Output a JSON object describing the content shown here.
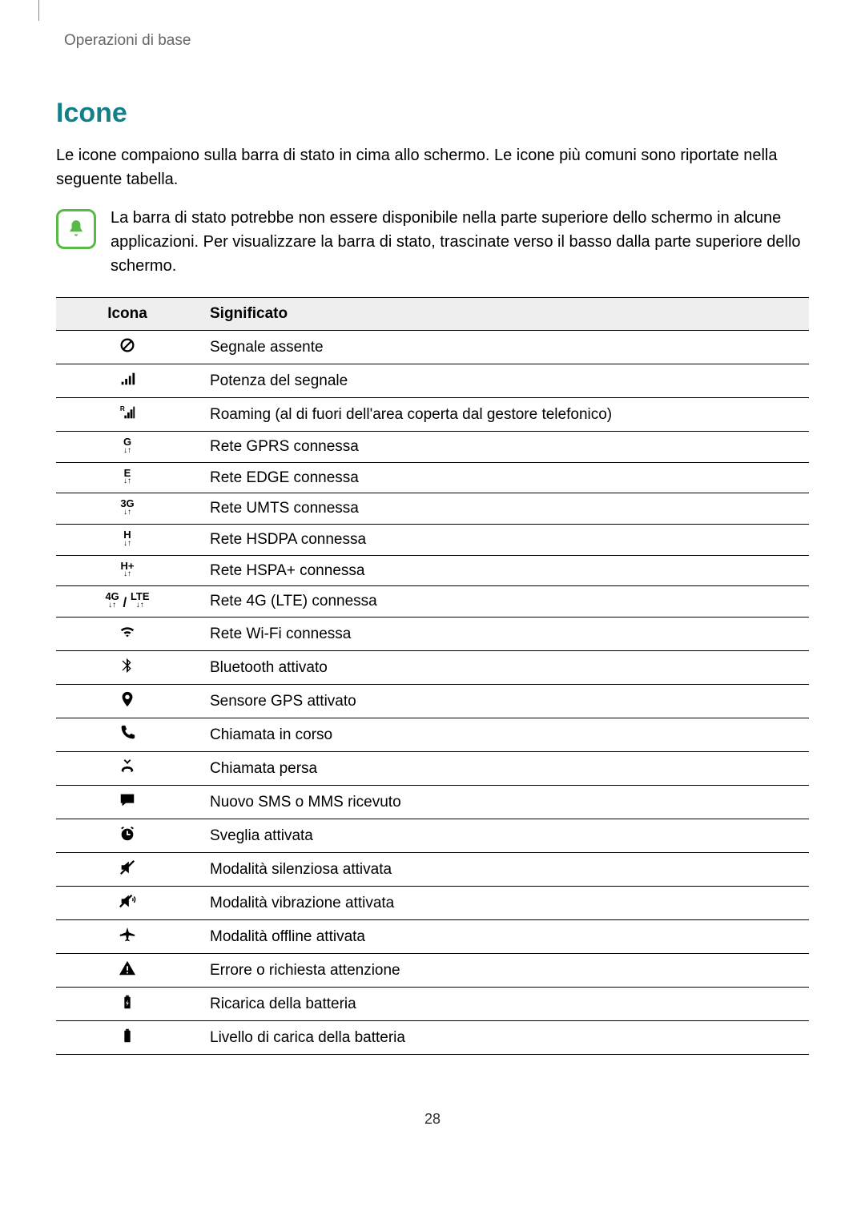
{
  "breadcrumb": "Operazioni di base",
  "title": "Icone",
  "intro": "Le icone compaiono sulla barra di stato in cima allo schermo. Le icone più comuni sono riportate nella seguente tabella.",
  "note": "La barra di stato potrebbe non essere disponibile nella parte superiore dello schermo in alcune applicazioni. Per visualizzare la barra di stato, trascinate verso il basso dalla parte superiore dello schermo.",
  "page_num": "28",
  "colors": {
    "heading": "#127f89",
    "note_border": "#58b947",
    "header_bg": "#eeeeee",
    "rule": "#000000",
    "text": "#000000",
    "breadcrumb": "#666666"
  },
  "table": {
    "columns": [
      "Icona",
      "Significato"
    ],
    "rows": [
      {
        "icon": "no-signal",
        "label": "Segnale assente"
      },
      {
        "icon": "signal",
        "label": "Potenza del segnale"
      },
      {
        "icon": "roaming",
        "label": "Roaming (al di fuori dell'area coperta dal gestore telefonico)"
      },
      {
        "icon": "gprs",
        "glyph": "G",
        "label": "Rete GPRS connessa"
      },
      {
        "icon": "edge",
        "glyph": "E",
        "label": "Rete EDGE connessa"
      },
      {
        "icon": "umts",
        "glyph": "3G",
        "label": "Rete UMTS connessa"
      },
      {
        "icon": "hsdpa",
        "glyph": "H",
        "label": "Rete HSDPA connessa"
      },
      {
        "icon": "hspaplus",
        "glyph": "H+",
        "label": "Rete HSPA+ connessa"
      },
      {
        "icon": "lte",
        "glyph": "4G / LTE",
        "label": "Rete 4G (LTE) connessa"
      },
      {
        "icon": "wifi",
        "label": "Rete Wi-Fi connessa"
      },
      {
        "icon": "bluetooth",
        "label": "Bluetooth attivato"
      },
      {
        "icon": "gps",
        "label": "Sensore GPS attivato"
      },
      {
        "icon": "call",
        "label": "Chiamata in corso"
      },
      {
        "icon": "missed-call",
        "label": "Chiamata persa"
      },
      {
        "icon": "message",
        "label": "Nuovo SMS o MMS ricevuto"
      },
      {
        "icon": "alarm",
        "label": "Sveglia attivata"
      },
      {
        "icon": "silent",
        "label": "Modalità silenziosa attivata"
      },
      {
        "icon": "vibrate",
        "label": "Modalità vibrazione attivata"
      },
      {
        "icon": "airplane",
        "label": "Modalità offline attivata"
      },
      {
        "icon": "warning",
        "label": "Errore o richiesta attenzione"
      },
      {
        "icon": "charging",
        "label": "Ricarica della batteria"
      },
      {
        "icon": "battery",
        "label": "Livello di carica della batteria"
      }
    ]
  }
}
